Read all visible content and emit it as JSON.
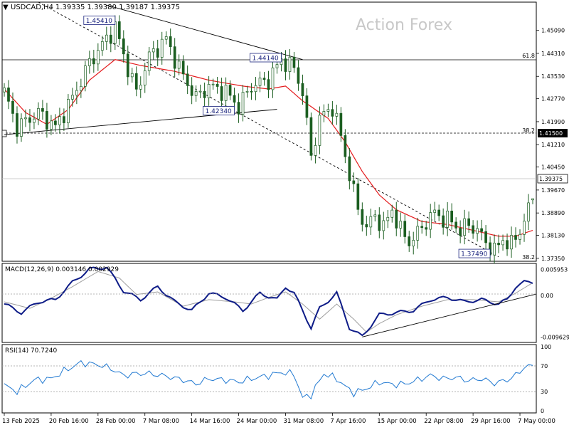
{
  "header": {
    "collapse_symbol": "▼",
    "symbol": "USDCAD,H4",
    "ohlc": "1.39335 1.39380 1.39187 1.39375",
    "watermark": "Action Forex"
  },
  "colors": {
    "bull": "#1b5e20",
    "ma": "#e41a1c",
    "macd": "#0d1b87",
    "signal": "#9e9e9e",
    "rsi": "#1f78d1",
    "trend": "#000000"
  },
  "main_axis": {
    "ticks": [
      "1.45090",
      "1.44310",
      "1.43530",
      "1.42770",
      "1.41990",
      "1.41210",
      "1.40450",
      "1.39670",
      "1.38890",
      "1.38130",
      "1.37350"
    ],
    "tick_values": [
      1.4509,
      1.4431,
      1.4353,
      1.4277,
      1.4199,
      1.4121,
      1.4045,
      1.3967,
      1.3889,
      1.3813,
      1.3735
    ],
    "ylim": [
      1.3725,
      1.4605
    ],
    "current_price_label": "1.39375",
    "current_price": 1.39375,
    "level_label": "1.41500",
    "level_price": 1.415
  },
  "fib": [
    {
      "label": "61.8",
      "price": 1.4398
    },
    {
      "label": "38.2",
      "price": 1.415
    },
    {
      "label": "38.2",
      "price": 1.3738
    }
  ],
  "annotations": [
    {
      "label": "1.45410",
      "price": 1.4541,
      "bar": 26
    },
    {
      "label": "1.44140",
      "price": 1.4414,
      "bar": 65
    },
    {
      "label": "1.42340",
      "price": 1.4234,
      "bar": 54
    },
    {
      "label": "1.37490",
      "price": 1.3749,
      "bar": 114
    }
  ],
  "macd": {
    "label": "MACD(12,26,9) 0.003146 0.002929",
    "ticks": [
      "0.005953",
      "0.00",
      "-0.009629"
    ],
    "tick_values": [
      0.005953,
      0.0,
      -0.009629
    ],
    "ylim": [
      -0.0107,
      0.0072
    ]
  },
  "rsi": {
    "label": "RSI(14) 70.7240",
    "ticks": [
      "100",
      "70",
      "30",
      "0"
    ],
    "tick_values": [
      100,
      70,
      30,
      0
    ]
  },
  "x_axis": {
    "labels": [
      "13 Feb 2025",
      "20 Feb 16:00",
      "28 Feb 00:00",
      "7 Mar 08:00",
      "14 Mar 16:00",
      "24 Mar 00:00",
      "31 Mar 08:00",
      "7 Apr 16:00",
      "15 Apr 00:00",
      "22 Apr 08:00",
      "29 Apr 16:00",
      "7 May 00:00"
    ],
    "label_bars": [
      0,
      11,
      22,
      33,
      44,
      55,
      66,
      77,
      88,
      99,
      110,
      121
    ]
  },
  "chart_data": {
    "type": "candlestick",
    "symbol": "USDCAD,H4",
    "ohlc_last": [
      1.39335,
      1.3938,
      1.39187,
      1.39375
    ],
    "bars": 125,
    "close_anchors": [
      [
        0,
        1.43
      ],
      [
        3,
        1.418
      ],
      [
        8,
        1.423
      ],
      [
        12,
        1.418
      ],
      [
        16,
        1.428
      ],
      [
        20,
        1.44
      ],
      [
        26,
        1.452
      ],
      [
        29,
        1.438
      ],
      [
        31,
        1.43
      ],
      [
        34,
        1.442
      ],
      [
        38,
        1.448
      ],
      [
        41,
        1.438
      ],
      [
        45,
        1.428
      ],
      [
        48,
        1.432
      ],
      [
        52,
        1.43
      ],
      [
        55,
        1.425
      ],
      [
        58,
        1.432
      ],
      [
        62,
        1.434
      ],
      [
        65,
        1.441
      ],
      [
        68,
        1.438
      ],
      [
        70,
        1.43
      ],
      [
        72,
        1.408
      ],
      [
        74,
        1.421
      ],
      [
        77,
        1.425
      ],
      [
        79,
        1.415
      ],
      [
        81,
        1.402
      ],
      [
        83,
        1.39
      ],
      [
        85,
        1.384
      ],
      [
        87,
        1.388
      ],
      [
        89,
        1.384
      ],
      [
        91,
        1.39
      ],
      [
        93,
        1.383
      ],
      [
        95,
        1.379
      ],
      [
        97,
        1.382
      ],
      [
        99,
        1.386
      ],
      [
        101,
        1.389
      ],
      [
        103,
        1.387
      ],
      [
        105,
        1.386
      ],
      [
        107,
        1.383
      ],
      [
        109,
        1.385
      ],
      [
        111,
        1.383
      ],
      [
        113,
        1.379
      ],
      [
        115,
        1.376
      ],
      [
        117,
        1.38
      ],
      [
        119,
        1.378
      ],
      [
        121,
        1.383
      ],
      [
        123,
        1.39
      ],
      [
        124,
        1.39375
      ]
    ],
    "ma_anchors": [
      [
        0,
        1.431
      ],
      [
        5,
        1.423
      ],
      [
        10,
        1.419
      ],
      [
        15,
        1.424
      ],
      [
        20,
        1.434
      ],
      [
        26,
        1.441
      ],
      [
        32,
        1.439
      ],
      [
        40,
        1.437
      ],
      [
        48,
        1.434
      ],
      [
        56,
        1.432
      ],
      [
        62,
        1.431
      ],
      [
        66,
        1.432
      ],
      [
        70,
        1.427
      ],
      [
        76,
        1.421
      ],
      [
        80,
        1.413
      ],
      [
        84,
        1.403
      ],
      [
        88,
        1.395
      ],
      [
        92,
        1.39
      ],
      [
        98,
        1.386
      ],
      [
        104,
        1.385
      ],
      [
        110,
        1.383
      ],
      [
        116,
        1.381
      ],
      [
        120,
        1.381
      ],
      [
        124,
        1.383
      ]
    ],
    "macd_anchors": [
      [
        0,
        -0.002
      ],
      [
        4,
        -0.004
      ],
      [
        8,
        -0.0015
      ],
      [
        12,
        -0.001
      ],
      [
        16,
        0.003
      ],
      [
        20,
        0.006
      ],
      [
        24,
        0.0065
      ],
      [
        28,
        0.001
      ],
      [
        32,
        -0.001
      ],
      [
        36,
        0.002
      ],
      [
        40,
        -0.0015
      ],
      [
        44,
        -0.0035
      ],
      [
        48,
        0.0005
      ],
      [
        52,
        -0.0005
      ],
      [
        56,
        -0.0035
      ],
      [
        60,
        0.0005
      ],
      [
        64,
        -0.001
      ],
      [
        66,
        0.002
      ],
      [
        68,
        0.0005
      ],
      [
        72,
        -0.0075
      ],
      [
        74,
        -0.003
      ],
      [
        78,
        0.0005
      ],
      [
        81,
        -0.0075
      ],
      [
        84,
        -0.0095
      ],
      [
        86,
        -0.007
      ],
      [
        88,
        -0.0045
      ],
      [
        92,
        -0.004
      ],
      [
        96,
        -0.0035
      ],
      [
        100,
        -0.001
      ],
      [
        104,
        -0.0005
      ],
      [
        108,
        -0.0015
      ],
      [
        112,
        -0.001
      ],
      [
        116,
        -0.002
      ],
      [
        118,
        -0.001
      ],
      [
        120,
        0.002
      ],
      [
        122,
        0.003
      ],
      [
        124,
        0.0031
      ]
    ],
    "signal_anchors": [
      [
        0,
        -0.0015
      ],
      [
        6,
        -0.003
      ],
      [
        10,
        -0.0012
      ],
      [
        16,
        0.002
      ],
      [
        22,
        0.0055
      ],
      [
        27,
        0.004
      ],
      [
        31,
        0.0002
      ],
      [
        36,
        0.0008
      ],
      [
        42,
        -0.0025
      ],
      [
        48,
        -0.001
      ],
      [
        54,
        -0.0015
      ],
      [
        58,
        -0.002
      ],
      [
        62,
        -0.0005
      ],
      [
        66,
        0.0008
      ],
      [
        70,
        -0.002
      ],
      [
        74,
        -0.0055
      ],
      [
        78,
        -0.002
      ],
      [
        82,
        -0.0055
      ],
      [
        85,
        -0.0085
      ],
      [
        88,
        -0.0065
      ],
      [
        92,
        -0.0045
      ],
      [
        98,
        -0.0025
      ],
      [
        104,
        -0.001
      ],
      [
        110,
        -0.001
      ],
      [
        116,
        -0.0015
      ],
      [
        120,
        0.0005
      ],
      [
        124,
        0.0029
      ]
    ],
    "rsi_anchors": [
      [
        0,
        40
      ],
      [
        3,
        30
      ],
      [
        7,
        48
      ],
      [
        11,
        50
      ],
      [
        14,
        62
      ],
      [
        18,
        75
      ],
      [
        22,
        72
      ],
      [
        25,
        66
      ],
      [
        28,
        55
      ],
      [
        31,
        58
      ],
      [
        34,
        58
      ],
      [
        38,
        54
      ],
      [
        42,
        48
      ],
      [
        45,
        42
      ],
      [
        48,
        50
      ],
      [
        52,
        48
      ],
      [
        55,
        45
      ],
      [
        58,
        50
      ],
      [
        62,
        55
      ],
      [
        65,
        60
      ],
      [
        68,
        57
      ],
      [
        70,
        20
      ],
      [
        72,
        25
      ],
      [
        75,
        58
      ],
      [
        78,
        50
      ],
      [
        80,
        38
      ],
      [
        82,
        28
      ],
      [
        84,
        32
      ],
      [
        86,
        38
      ],
      [
        88,
        45
      ],
      [
        91,
        41
      ],
      [
        94,
        42
      ],
      [
        97,
        48
      ],
      [
        100,
        55
      ],
      [
        103,
        50
      ],
      [
        106,
        52
      ],
      [
        109,
        47
      ],
      [
        112,
        50
      ],
      [
        115,
        43
      ],
      [
        118,
        48
      ],
      [
        120,
        55
      ],
      [
        122,
        68
      ],
      [
        124,
        70.724
      ]
    ],
    "trendlines": [
      {
        "from": [
          0,
          1.4155
        ],
        "to": [
          64,
          1.4241
        ]
      },
      {
        "from": [
          24,
          1.4595
        ],
        "to": [
          70,
          1.441
        ]
      },
      {
        "from": [
          8,
          1.4605
        ],
        "to": [
          116,
          1.374
        ]
      }
    ],
    "macd_trendline": {
      "from": [
        84,
        -0.0096
      ],
      "to": [
        125,
        0.0003
      ]
    },
    "rsi_levels": [
      70,
      30
    ]
  }
}
